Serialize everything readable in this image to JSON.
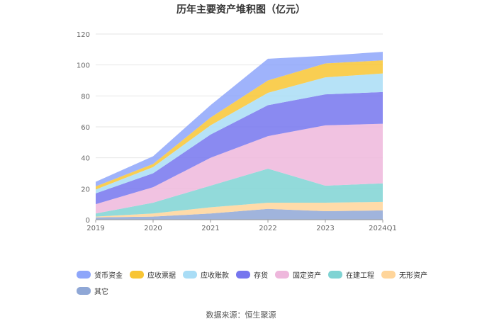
{
  "chart_data": {
    "type": "area",
    "stacked": true,
    "title": "历年主要资产堆积图（亿元）",
    "categories": [
      "2019",
      "2020",
      "2021",
      "2022",
      "2023",
      "2024Q1"
    ],
    "ylim": [
      0,
      120
    ],
    "yticks": [
      "0",
      "20",
      "40",
      "60",
      "80",
      "100",
      "120"
    ],
    "grid": true,
    "legend_position": "bottom",
    "series": [
      {
        "name": "其它",
        "color": "#8fa7d6",
        "values": [
          1.5,
          2.0,
          4.0,
          7.0,
          5.5,
          6.0
        ]
      },
      {
        "name": "无形资产",
        "color": "#ffd59a",
        "values": [
          0.5,
          2.0,
          4.0,
          4.0,
          5.5,
          5.5
        ]
      },
      {
        "name": "在建工程",
        "color": "#7fd3d3",
        "values": [
          2.0,
          7.0,
          14.0,
          22.0,
          11.0,
          12.0
        ]
      },
      {
        "name": "固定资产",
        "color": "#eeb7dc",
        "values": [
          6.0,
          10.0,
          18.0,
          21.0,
          39.0,
          38.5
        ]
      },
      {
        "name": "存货",
        "color": "#7676ee",
        "values": [
          7.0,
          9.0,
          15.0,
          20.0,
          20.0,
          20.5
        ]
      },
      {
        "name": "应收账款",
        "color": "#a9ddf6",
        "values": [
          2.5,
          4.0,
          6.0,
          8.0,
          11.0,
          12.0
        ]
      },
      {
        "name": "应收票据",
        "color": "#f8c534",
        "values": [
          2.0,
          2.0,
          5.0,
          8.0,
          9.0,
          8.5
        ]
      },
      {
        "name": "货币资金",
        "color": "#8ea6fa",
        "values": [
          3.0,
          5.0,
          8.0,
          14.0,
          5.0,
          5.5
        ]
      }
    ],
    "legend_order": [
      "货币资金",
      "应收票据",
      "应收账款",
      "存货",
      "固定资产",
      "在建工程",
      "无形资产",
      "其它"
    ]
  },
  "source": "数据来源：恒生聚源"
}
